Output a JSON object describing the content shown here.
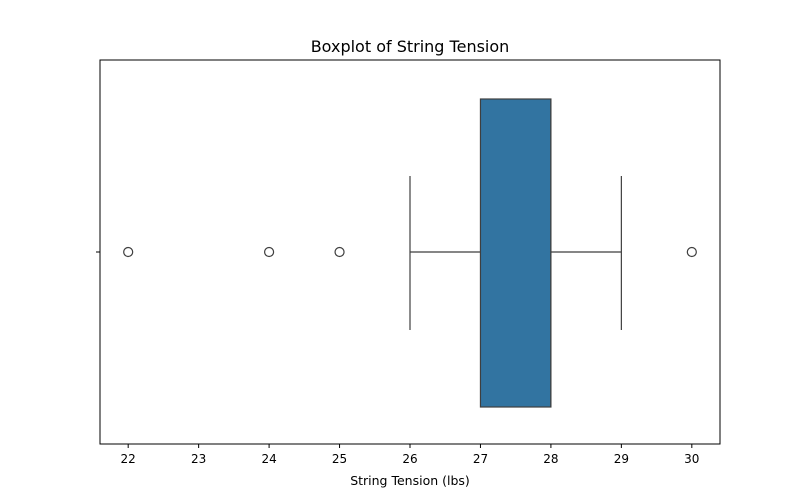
{
  "chart_data": {
    "type": "boxplot",
    "title": "Boxplot of String Tension",
    "xlabel": "String Tension (lbs)",
    "ylabel": "",
    "orientation": "horizontal",
    "xlim": [
      21.6,
      30.4
    ],
    "xticks": [
      22,
      23,
      24,
      25,
      26,
      27,
      28,
      29,
      30
    ],
    "grid": false,
    "legend": "none",
    "colors": {
      "box_fill": "#3274a1",
      "line": "#3f3f3f"
    },
    "box": {
      "whisker_low": 26,
      "q1": 27,
      "median": 28,
      "q3": 28,
      "whisker_high": 29
    },
    "outliers": [
      22,
      24,
      25,
      30
    ]
  }
}
